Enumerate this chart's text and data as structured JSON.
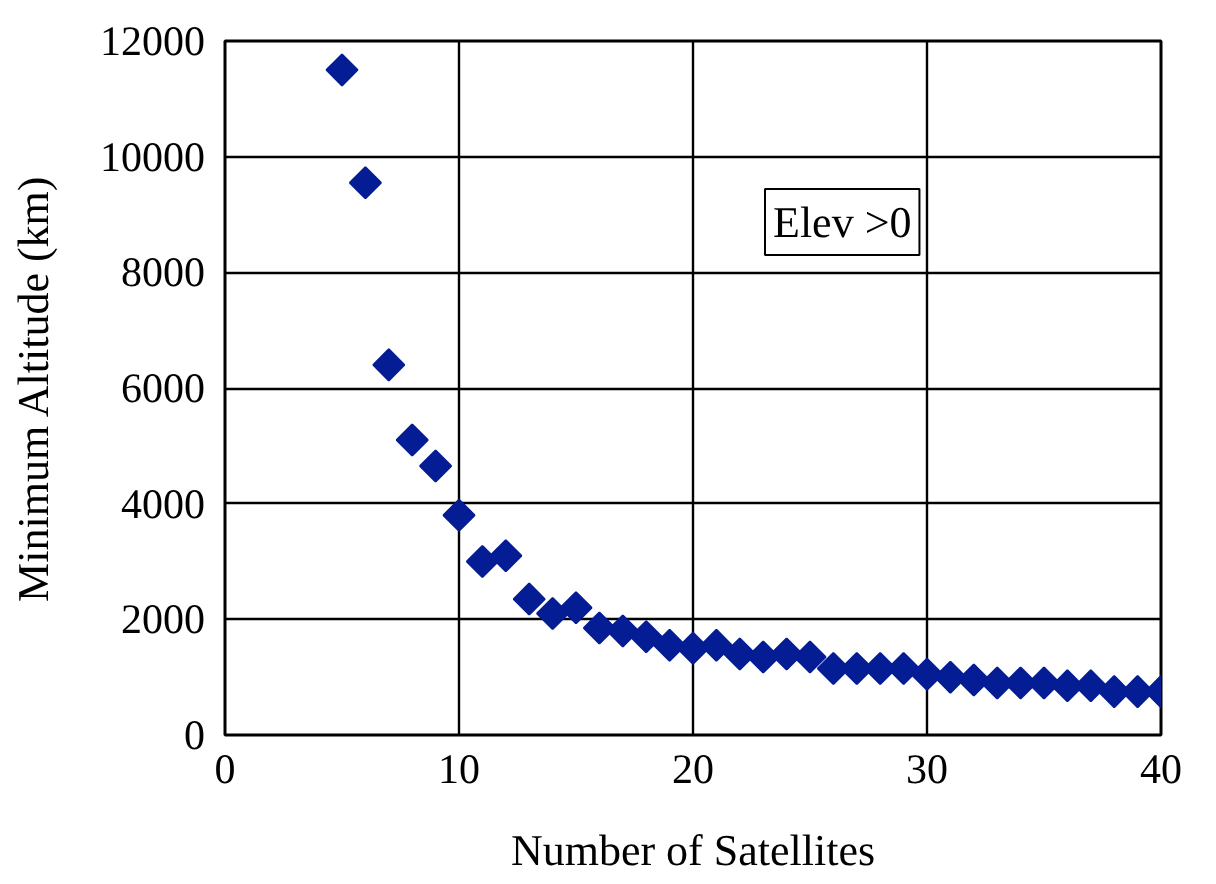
{
  "chart_data": {
    "type": "scatter",
    "xlabel": "Number of Satellites",
    "ylabel": "Minimum Altitude (km)",
    "annotations": [
      "Elev >0"
    ],
    "x": [
      5,
      6,
      7,
      8,
      9,
      10,
      11,
      12,
      13,
      14,
      15,
      16,
      17,
      18,
      19,
      20,
      21,
      22,
      23,
      24,
      25,
      26,
      27,
      28,
      29,
      30,
      31,
      32,
      33,
      34,
      35,
      36,
      37,
      38,
      39,
      40
    ],
    "series": [
      {
        "color": "#041c94",
        "values": [
          11500,
          9550,
          6400,
          5100,
          4650,
          3800,
          3000,
          3100,
          2350,
          2100,
          2200,
          1850,
          1800,
          1700,
          1550,
          1500,
          1550,
          1400,
          1350,
          1400,
          1350,
          1150,
          1150,
          1150,
          1150,
          1050,
          1000,
          950,
          900,
          900,
          900,
          850,
          850,
          750,
          750,
          750
        ]
      }
    ],
    "xlim": [
      0,
      40
    ],
    "ylim": [
      0,
      12000
    ],
    "xticks": [
      0,
      10,
      20,
      30,
      40
    ],
    "yticks": [
      0,
      2000,
      4000,
      6000,
      8000,
      10000,
      12000
    ],
    "grid": true,
    "marker": "diamond"
  }
}
